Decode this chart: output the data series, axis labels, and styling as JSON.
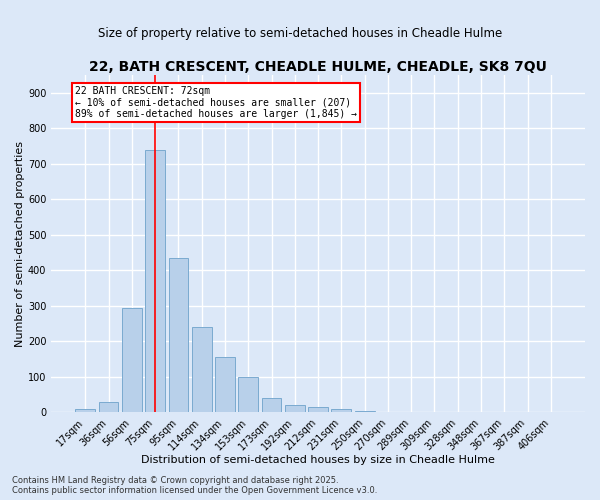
{
  "title": "22, BATH CRESCENT, CHEADLE HULME, CHEADLE, SK8 7QU",
  "subtitle": "Size of property relative to semi-detached houses in Cheadle Hulme",
  "xlabel": "Distribution of semi-detached houses by size in Cheadle Hulme",
  "ylabel": "Number of semi-detached properties",
  "footnote1": "Contains HM Land Registry data © Crown copyright and database right 2025.",
  "footnote2": "Contains public sector information licensed under the Open Government Licence v3.0.",
  "categories": [
    "17sqm",
    "36sqm",
    "56sqm",
    "75sqm",
    "95sqm",
    "114sqm",
    "134sqm",
    "153sqm",
    "173sqm",
    "192sqm",
    "212sqm",
    "231sqm",
    "250sqm",
    "270sqm",
    "289sqm",
    "309sqm",
    "328sqm",
    "348sqm",
    "367sqm",
    "387sqm",
    "406sqm"
  ],
  "values": [
    10,
    30,
    295,
    740,
    435,
    240,
    155,
    100,
    42,
    22,
    14,
    10,
    5,
    2,
    1,
    1,
    0,
    0,
    0,
    0,
    0
  ],
  "bar_color": "#b8d0ea",
  "bar_edge_color": "#7aaad0",
  "background_color": "#dce8f8",
  "grid_color": "#ffffff",
  "vline_x_index": 3,
  "vline_color": "red",
  "annotation_line1": "22 BATH CRESCENT: 72sqm",
  "annotation_line2": "← 10% of semi-detached houses are smaller (207)",
  "annotation_line3": "89% of semi-detached houses are larger (1,845) →",
  "annotation_box_color": "#ffffff",
  "annotation_box_edge_color": "red",
  "ylim": [
    0,
    950
  ],
  "yticks": [
    0,
    100,
    200,
    300,
    400,
    500,
    600,
    700,
    800,
    900
  ],
  "title_fontsize": 10,
  "subtitle_fontsize": 8.5,
  "xlabel_fontsize": 8,
  "ylabel_fontsize": 8,
  "tick_fontsize": 7,
  "annotation_fontsize": 7,
  "footnote_fontsize": 6
}
